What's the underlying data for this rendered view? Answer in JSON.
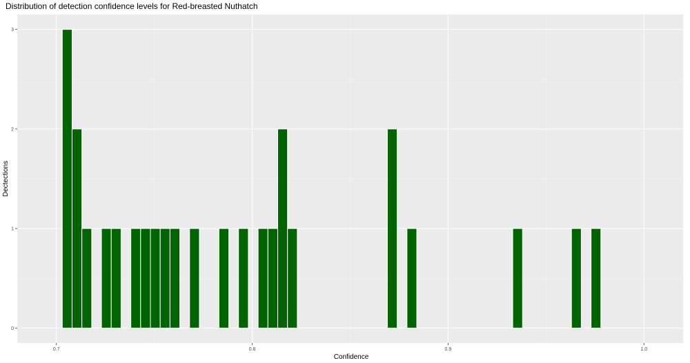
{
  "chart_data": {
    "type": "bar",
    "title": "Distribution of detection confidence levels for Red-breasted Nuthatch",
    "xlabel": "Confidence",
    "ylabel": "Dectections",
    "xlim": [
      0.68,
      1.02
    ],
    "ylim": [
      -0.15,
      3.15
    ],
    "x_ticks": [
      {
        "value": 0.7,
        "label": "0.7"
      },
      {
        "value": 0.8,
        "label": "0.8"
      },
      {
        "value": 0.9,
        "label": "0.9"
      },
      {
        "value": 1.0,
        "label": "1.0"
      }
    ],
    "y_ticks": [
      {
        "value": 0,
        "label": "0"
      },
      {
        "value": 1,
        "label": "1"
      },
      {
        "value": 2,
        "label": "2"
      },
      {
        "value": 3,
        "label": "3"
      }
    ],
    "bin_width": 0.005,
    "bins": [
      {
        "x": 0.7055,
        "count": 3
      },
      {
        "x": 0.7105,
        "count": 2
      },
      {
        "x": 0.7155,
        "count": 1
      },
      {
        "x": 0.7255,
        "count": 1
      },
      {
        "x": 0.7305,
        "count": 1
      },
      {
        "x": 0.7405,
        "count": 1
      },
      {
        "x": 0.7455,
        "count": 1
      },
      {
        "x": 0.7505,
        "count": 1
      },
      {
        "x": 0.7555,
        "count": 1
      },
      {
        "x": 0.7605,
        "count": 1
      },
      {
        "x": 0.7705,
        "count": 1
      },
      {
        "x": 0.7855,
        "count": 1
      },
      {
        "x": 0.7955,
        "count": 1
      },
      {
        "x": 0.8055,
        "count": 1
      },
      {
        "x": 0.8105,
        "count": 1
      },
      {
        "x": 0.8155,
        "count": 2
      },
      {
        "x": 0.8205,
        "count": 1
      },
      {
        "x": 0.8715,
        "count": 2
      },
      {
        "x": 0.8815,
        "count": 1
      },
      {
        "x": 0.9355,
        "count": 1
      },
      {
        "x": 0.9655,
        "count": 1
      },
      {
        "x": 0.9755,
        "count": 1
      }
    ],
    "grid": true,
    "colors": {
      "bar_fill": "#006400",
      "bar_outline": "#ffffff",
      "panel_background": "#ebebeb",
      "grid_major": "#ffffff",
      "grid_minor": "#f5f5f5"
    }
  }
}
